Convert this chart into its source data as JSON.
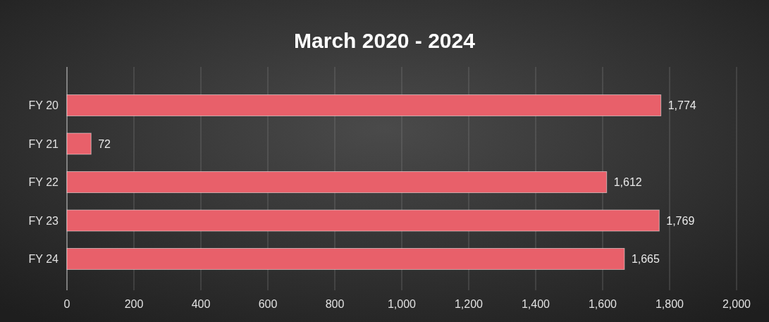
{
  "chart_data": {
    "type": "bar",
    "orientation": "horizontal",
    "title": "March 2020 - 2024",
    "categories": [
      "FY 20",
      "FY 21",
      "FY 22",
      "FY 23",
      "FY 24"
    ],
    "values": [
      1774,
      72,
      1612,
      1769,
      1665
    ],
    "color": "#e8606a",
    "xlim": [
      0,
      2000
    ],
    "xticks": [
      {
        "value": 0,
        "label": "0"
      },
      {
        "value": 200,
        "label": "200"
      },
      {
        "value": 400,
        "label": "400"
      },
      {
        "value": 600,
        "label": "600"
      },
      {
        "value": 800,
        "label": "800"
      },
      {
        "value": 1000,
        "label": "1,000"
      },
      {
        "value": 1200,
        "label": "1,200"
      },
      {
        "value": 1400,
        "label": "1,400"
      },
      {
        "value": 1600,
        "label": "1,600"
      },
      {
        "value": 1800,
        "label": "1,800"
      },
      {
        "value": 2000,
        "label": "2,000"
      }
    ],
    "value_labels": [
      "1,774",
      "72",
      "1,612",
      "1,769",
      "1,665"
    ],
    "grid": "x"
  }
}
